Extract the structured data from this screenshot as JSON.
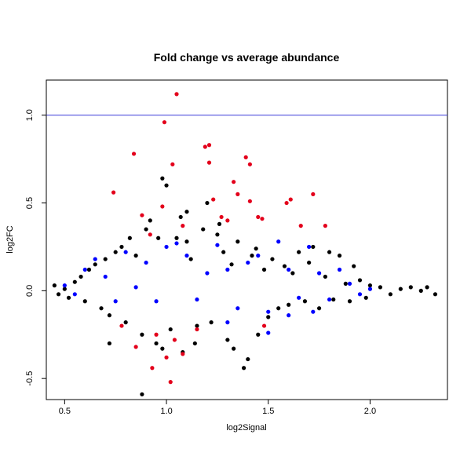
{
  "chart_data": {
    "type": "scatter",
    "title": "Fold change vs average abundance",
    "xlabel": "log2Signal",
    "ylabel": "log2FC",
    "xlim": [
      0.41,
      2.38
    ],
    "ylim": [
      -0.62,
      1.2
    ],
    "x_ticks": [
      0.5,
      1.0,
      1.5,
      2.0
    ],
    "x_tick_labels": [
      "0.5",
      "1.0",
      "1.5",
      "2.0"
    ],
    "y_ticks": [
      -0.5,
      0.0,
      0.5,
      1.0
    ],
    "y_tick_labels": [
      "-0.5",
      "0.0",
      "0.5",
      "1.0"
    ],
    "grid": false,
    "reference_line": {
      "y": 1.0,
      "color": "#3a3ad8"
    },
    "series": [
      {
        "color": "#000000",
        "points": [
          [
            0.45,
            0.03
          ],
          [
            0.47,
            -0.02
          ],
          [
            0.5,
            0.01
          ],
          [
            0.52,
            -0.04
          ],
          [
            0.55,
            0.05
          ],
          [
            0.58,
            0.08
          ],
          [
            0.6,
            -0.06
          ],
          [
            0.62,
            0.12
          ],
          [
            0.65,
            0.15
          ],
          [
            0.68,
            -0.1
          ],
          [
            0.7,
            0.18
          ],
          [
            0.72,
            -0.14
          ],
          [
            0.75,
            0.22
          ],
          [
            0.78,
            0.25
          ],
          [
            0.8,
            -0.18
          ],
          [
            0.82,
            0.3
          ],
          [
            0.85,
            0.2
          ],
          [
            0.88,
            -0.25
          ],
          [
            0.9,
            0.35
          ],
          [
            0.92,
            0.4
          ],
          [
            0.95,
            -0.3
          ],
          [
            0.98,
            0.64
          ],
          [
            1.0,
            0.6
          ],
          [
            1.02,
            -0.22
          ],
          [
            1.05,
            0.3
          ],
          [
            1.08,
            -0.35
          ],
          [
            1.1,
            0.28
          ],
          [
            1.12,
            0.18
          ],
          [
            1.15,
            -0.2
          ],
          [
            1.18,
            0.35
          ],
          [
            1.2,
            0.5
          ],
          [
            1.22,
            -0.18
          ],
          [
            1.25,
            0.32
          ],
          [
            1.28,
            0.22
          ],
          [
            1.3,
            -0.28
          ],
          [
            1.32,
            0.15
          ],
          [
            1.35,
            0.28
          ],
          [
            1.38,
            -0.44
          ],
          [
            1.4,
            -0.39
          ],
          [
            1.42,
            0.2
          ],
          [
            1.45,
            -0.25
          ],
          [
            1.48,
            0.12
          ],
          [
            1.5,
            -0.15
          ],
          [
            1.52,
            0.18
          ],
          [
            1.55,
            -0.1
          ],
          [
            1.58,
            0.14
          ],
          [
            1.6,
            -0.08
          ],
          [
            1.62,
            0.1
          ],
          [
            1.65,
            0.22
          ],
          [
            1.68,
            -0.06
          ],
          [
            1.7,
            0.16
          ],
          [
            1.72,
            0.25
          ],
          [
            1.75,
            -0.1
          ],
          [
            1.78,
            0.08
          ],
          [
            1.8,
            0.22
          ],
          [
            1.82,
            -0.05
          ],
          [
            1.85,
            0.2
          ],
          [
            1.88,
            0.04
          ],
          [
            1.9,
            -0.06
          ],
          [
            1.92,
            0.14
          ],
          [
            1.95,
            0.06
          ],
          [
            1.98,
            -0.04
          ],
          [
            2.0,
            0.03
          ],
          [
            2.05,
            0.02
          ],
          [
            2.1,
            -0.02
          ],
          [
            2.15,
            0.01
          ],
          [
            2.2,
            0.02
          ],
          [
            2.25,
            0.0
          ],
          [
            2.28,
            0.02
          ],
          [
            2.32,
            -0.02
          ],
          [
            0.88,
            -0.59
          ],
          [
            0.98,
            -0.33
          ],
          [
            1.07,
            0.42
          ],
          [
            1.1,
            0.45
          ],
          [
            0.72,
            -0.3
          ],
          [
            0.96,
            0.3
          ],
          [
            1.14,
            -0.3
          ],
          [
            1.26,
            0.38
          ],
          [
            1.33,
            -0.33
          ],
          [
            1.44,
            0.24
          ]
        ]
      },
      {
        "color": "#0000ff",
        "points": [
          [
            0.5,
            0.03
          ],
          [
            0.55,
            -0.02
          ],
          [
            0.6,
            0.12
          ],
          [
            0.65,
            0.18
          ],
          [
            0.7,
            0.08
          ],
          [
            0.75,
            -0.06
          ],
          [
            0.8,
            0.22
          ],
          [
            0.85,
            0.02
          ],
          [
            0.9,
            0.16
          ],
          [
            0.95,
            -0.06
          ],
          [
            1.0,
            0.25
          ],
          [
            1.05,
            0.27
          ],
          [
            1.1,
            0.2
          ],
          [
            1.15,
            -0.05
          ],
          [
            1.2,
            0.1
          ],
          [
            1.25,
            0.26
          ],
          [
            1.3,
            0.12
          ],
          [
            1.35,
            -0.1
          ],
          [
            1.4,
            0.16
          ],
          [
            1.45,
            0.2
          ],
          [
            1.5,
            -0.12
          ],
          [
            1.55,
            0.28
          ],
          [
            1.6,
            0.12
          ],
          [
            1.65,
            -0.04
          ],
          [
            1.7,
            0.25
          ],
          [
            1.75,
            0.1
          ],
          [
            1.8,
            -0.05
          ],
          [
            1.85,
            0.12
          ],
          [
            1.9,
            0.04
          ],
          [
            1.95,
            -0.02
          ],
          [
            2.0,
            0.01
          ],
          [
            1.3,
            -0.18
          ],
          [
            1.5,
            -0.24
          ],
          [
            1.6,
            -0.14
          ],
          [
            1.72,
            -0.12
          ]
        ]
      },
      {
        "color": "#e3001b",
        "points": [
          [
            0.74,
            0.56
          ],
          [
            0.84,
            0.78
          ],
          [
            0.99,
            0.96
          ],
          [
            1.05,
            1.12
          ],
          [
            1.03,
            0.72
          ],
          [
            1.08,
            0.37
          ],
          [
            1.19,
            0.82
          ],
          [
            1.21,
            0.83
          ],
          [
            1.21,
            0.73
          ],
          [
            1.27,
            0.42
          ],
          [
            1.33,
            0.62
          ],
          [
            1.35,
            0.55
          ],
          [
            1.39,
            0.76
          ],
          [
            1.41,
            0.72
          ],
          [
            1.41,
            0.51
          ],
          [
            1.45,
            0.42
          ],
          [
            1.47,
            0.41
          ],
          [
            1.59,
            0.5
          ],
          [
            1.61,
            0.52
          ],
          [
            1.72,
            0.55
          ],
          [
            1.78,
            0.37
          ],
          [
            1.66,
            0.37
          ],
          [
            0.88,
            0.43
          ],
          [
            0.92,
            0.32
          ],
          [
            0.98,
            0.48
          ],
          [
            1.0,
            -0.38
          ],
          [
            1.02,
            -0.52
          ],
          [
            0.85,
            -0.32
          ],
          [
            0.93,
            -0.44
          ],
          [
            1.08,
            -0.36
          ],
          [
            0.78,
            -0.2
          ],
          [
            1.15,
            -0.22
          ],
          [
            1.48,
            -0.2
          ],
          [
            1.3,
            0.4
          ],
          [
            1.23,
            0.52
          ],
          [
            0.95,
            -0.25
          ],
          [
            1.04,
            -0.28
          ]
        ]
      }
    ]
  }
}
